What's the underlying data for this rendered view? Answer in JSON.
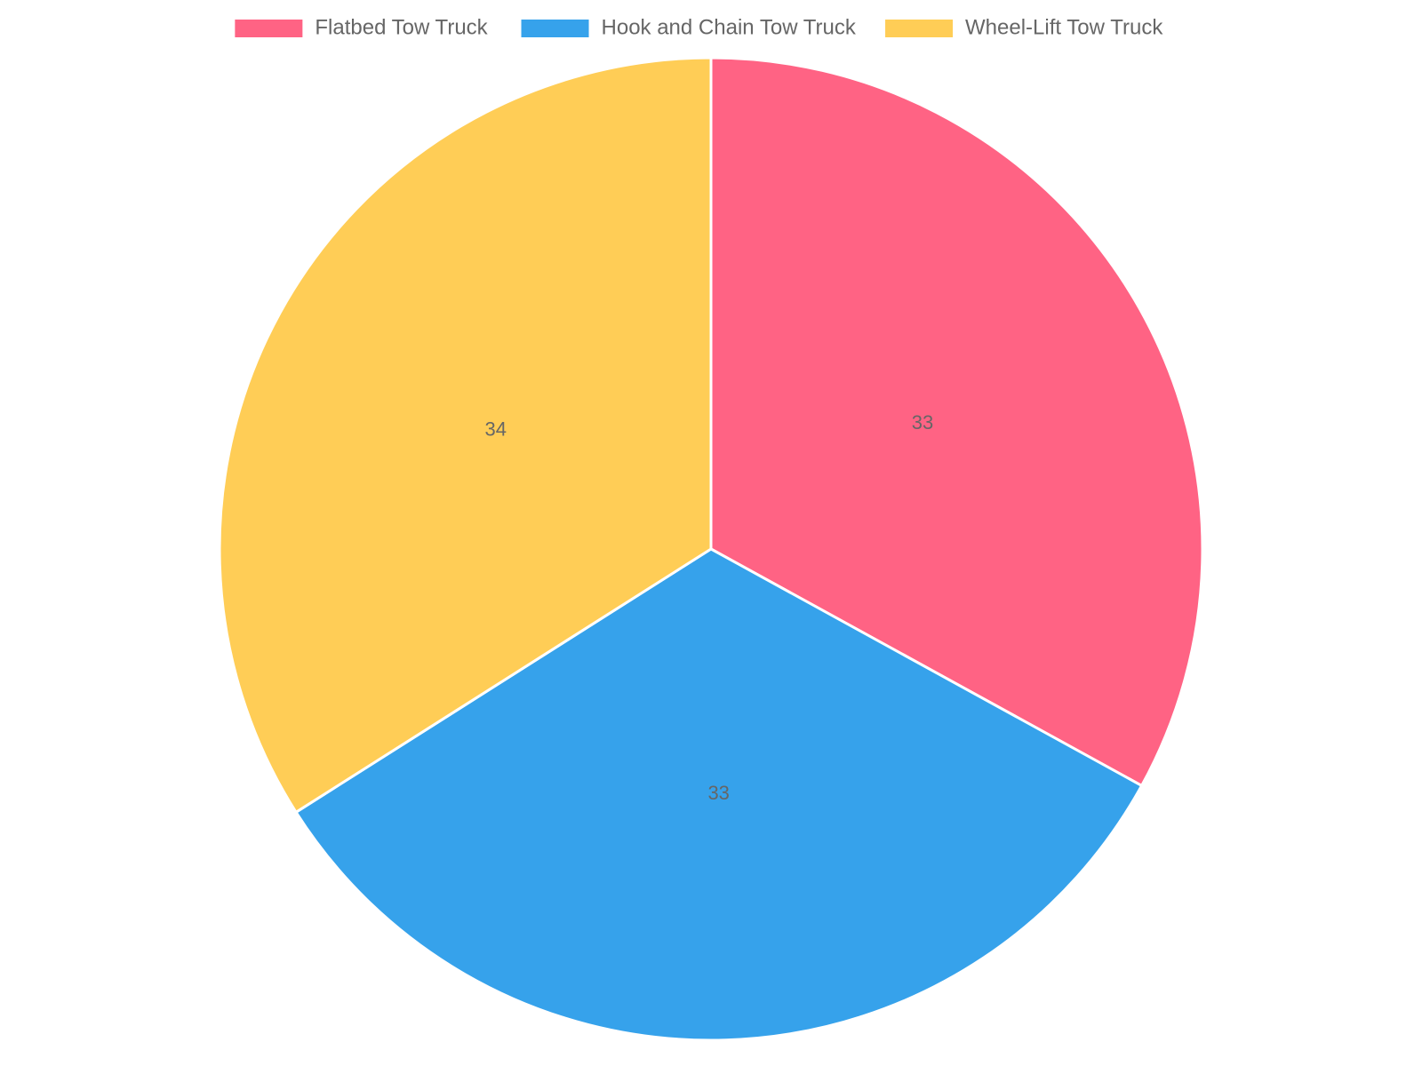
{
  "chart_data": {
    "type": "pie",
    "title": "",
    "categories": [
      "Flatbed Tow Truck",
      "Hook and Chain Tow Truck",
      "Wheel-Lift Tow Truck"
    ],
    "values": [
      33,
      33,
      34
    ],
    "colors": [
      "#ff6384",
      "#36a2eb",
      "#ffcd56"
    ],
    "data_labels": [
      "33",
      "33",
      "34"
    ],
    "legend_position": "top",
    "label_color": "#666666",
    "slice_border_color": "#ffffff"
  }
}
